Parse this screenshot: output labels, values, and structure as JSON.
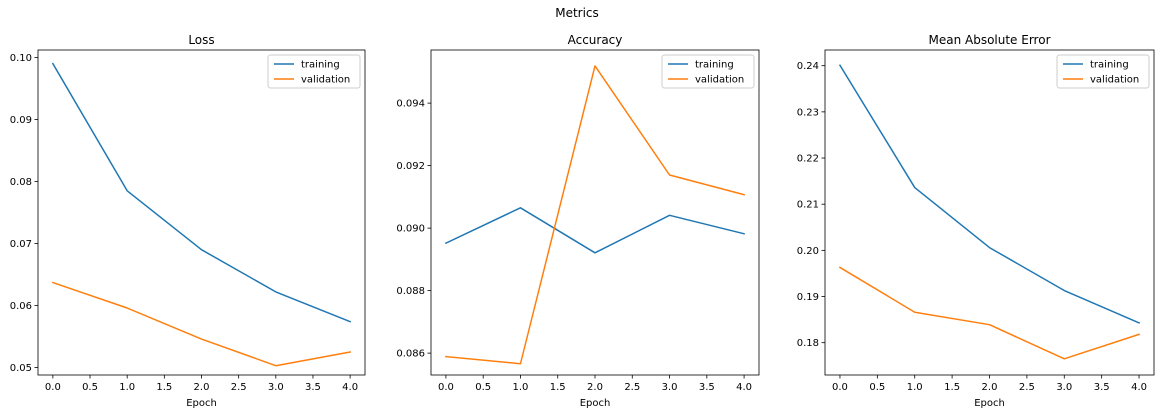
{
  "figure": {
    "suptitle": "Metrics"
  },
  "colors": {
    "training": "#1f77b4",
    "validation": "#ff7f0e"
  },
  "chart_data": [
    {
      "type": "line",
      "title": "Loss",
      "xlabel": "Epoch",
      "ylabel": "",
      "x": [
        0,
        1,
        2,
        3,
        4
      ],
      "xlim": [
        -0.2,
        4.2
      ],
      "ylim": [
        0.0488,
        0.1012
      ],
      "xticks": [
        0.0,
        0.5,
        1.0,
        1.5,
        2.0,
        2.5,
        3.0,
        3.5,
        4.0
      ],
      "yticks": [
        0.05,
        0.06,
        0.07,
        0.08,
        0.09,
        0.1
      ],
      "ytick_decimals": 2,
      "grid": false,
      "legend": "top-right",
      "series": [
        {
          "name": "training",
          "color": "#1f77b4",
          "values": [
            0.099,
            0.0785,
            0.069,
            0.0622,
            0.0574
          ]
        },
        {
          "name": "validation",
          "color": "#ff7f0e",
          "values": [
            0.0637,
            0.0596,
            0.0546,
            0.0503,
            0.0525
          ]
        }
      ]
    },
    {
      "type": "line",
      "title": "Accuracy",
      "xlabel": "Epoch",
      "ylabel": "",
      "x": [
        0,
        1,
        2,
        3,
        4
      ],
      "xlim": [
        -0.2,
        4.2
      ],
      "ylim": [
        0.0853,
        0.0957
      ],
      "xticks": [
        0.0,
        0.5,
        1.0,
        1.5,
        2.0,
        2.5,
        3.0,
        3.5,
        4.0
      ],
      "yticks": [
        0.086,
        0.088,
        0.09,
        0.092,
        0.094
      ],
      "ytick_decimals": 3,
      "grid": false,
      "legend": "top-right",
      "series": [
        {
          "name": "training",
          "color": "#1f77b4",
          "values": [
            0.08952,
            0.09065,
            0.08921,
            0.09041,
            0.08982
          ]
        },
        {
          "name": "validation",
          "color": "#ff7f0e",
          "values": [
            0.08589,
            0.08566,
            0.09519,
            0.0917,
            0.09107
          ]
        }
      ]
    },
    {
      "type": "line",
      "title": "Mean Absolute Error",
      "xlabel": "Epoch",
      "ylabel": "",
      "x": [
        0,
        1,
        2,
        3,
        4
      ],
      "xlim": [
        -0.2,
        4.2
      ],
      "ylim": [
        0.173,
        0.2434
      ],
      "xticks": [
        0.0,
        0.5,
        1.0,
        1.5,
        2.0,
        2.5,
        3.0,
        3.5,
        4.0
      ],
      "yticks": [
        0.18,
        0.19,
        0.2,
        0.21,
        0.22,
        0.23,
        0.24
      ],
      "ytick_decimals": 2,
      "grid": false,
      "legend": "top-right",
      "series": [
        {
          "name": "training",
          "color": "#1f77b4",
          "values": [
            0.2401,
            0.2136,
            0.2006,
            0.1913,
            0.1843
          ]
        },
        {
          "name": "validation",
          "color": "#ff7f0e",
          "values": [
            0.1963,
            0.1866,
            0.1839,
            0.1765,
            0.1818
          ]
        }
      ]
    }
  ]
}
